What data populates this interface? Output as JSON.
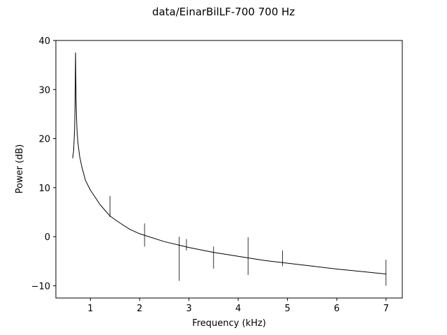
{
  "chart_data": {
    "type": "line",
    "title": "data/EinarBilLF-700   700 Hz",
    "xlabel": "Frequency (kHz)",
    "ylabel": "Power (dB)",
    "xlim": [
      0.3,
      7.33
    ],
    "ylim": [
      -12.5,
      40
    ],
    "xticks": [
      1,
      2,
      3,
      4,
      5,
      6,
      7
    ],
    "yticks": [
      -10,
      0,
      10,
      20,
      30,
      40
    ],
    "grid": false,
    "legend": "none",
    "line_color": "#000000",
    "series": [
      {
        "x": [
          0.64,
          0.66,
          0.68,
          0.69,
          0.7,
          0.71,
          0.72,
          0.73,
          0.75,
          0.78,
          0.82,
          0.9,
          1.0,
          1.2,
          1.4,
          1.6,
          1.8,
          2.0,
          2.5,
          3.0,
          3.5,
          4.0,
          4.5,
          5.0,
          5.5,
          6.0,
          6.5,
          7.0
        ],
        "y": [
          16,
          17.5,
          22,
          27,
          37.5,
          28,
          24,
          21.5,
          19,
          16.5,
          14.5,
          11.5,
          9.5,
          6.5,
          4.2,
          2.8,
          1.5,
          0.6,
          -1.0,
          -2.2,
          -3.2,
          -4.0,
          -4.8,
          -5.4,
          -6.0,
          -6.6,
          -7.1,
          -7.6
        ]
      }
    ],
    "spikes": [
      {
        "x": 1.4,
        "low": 4,
        "high": 8.3
      },
      {
        "x": 2.1,
        "low": -2,
        "high": 2.7
      },
      {
        "x": 2.8,
        "low": -9,
        "high": 0
      },
      {
        "x": 2.95,
        "low": -2.8,
        "high": -0.5
      },
      {
        "x": 3.5,
        "low": -6.5,
        "high": -2.0
      },
      {
        "x": 4.2,
        "low": -7.8,
        "high": -0.1
      },
      {
        "x": 4.9,
        "low": -6.0,
        "high": -2.8
      },
      {
        "x": 7.0,
        "low": -10,
        "high": -4.7
      }
    ]
  }
}
